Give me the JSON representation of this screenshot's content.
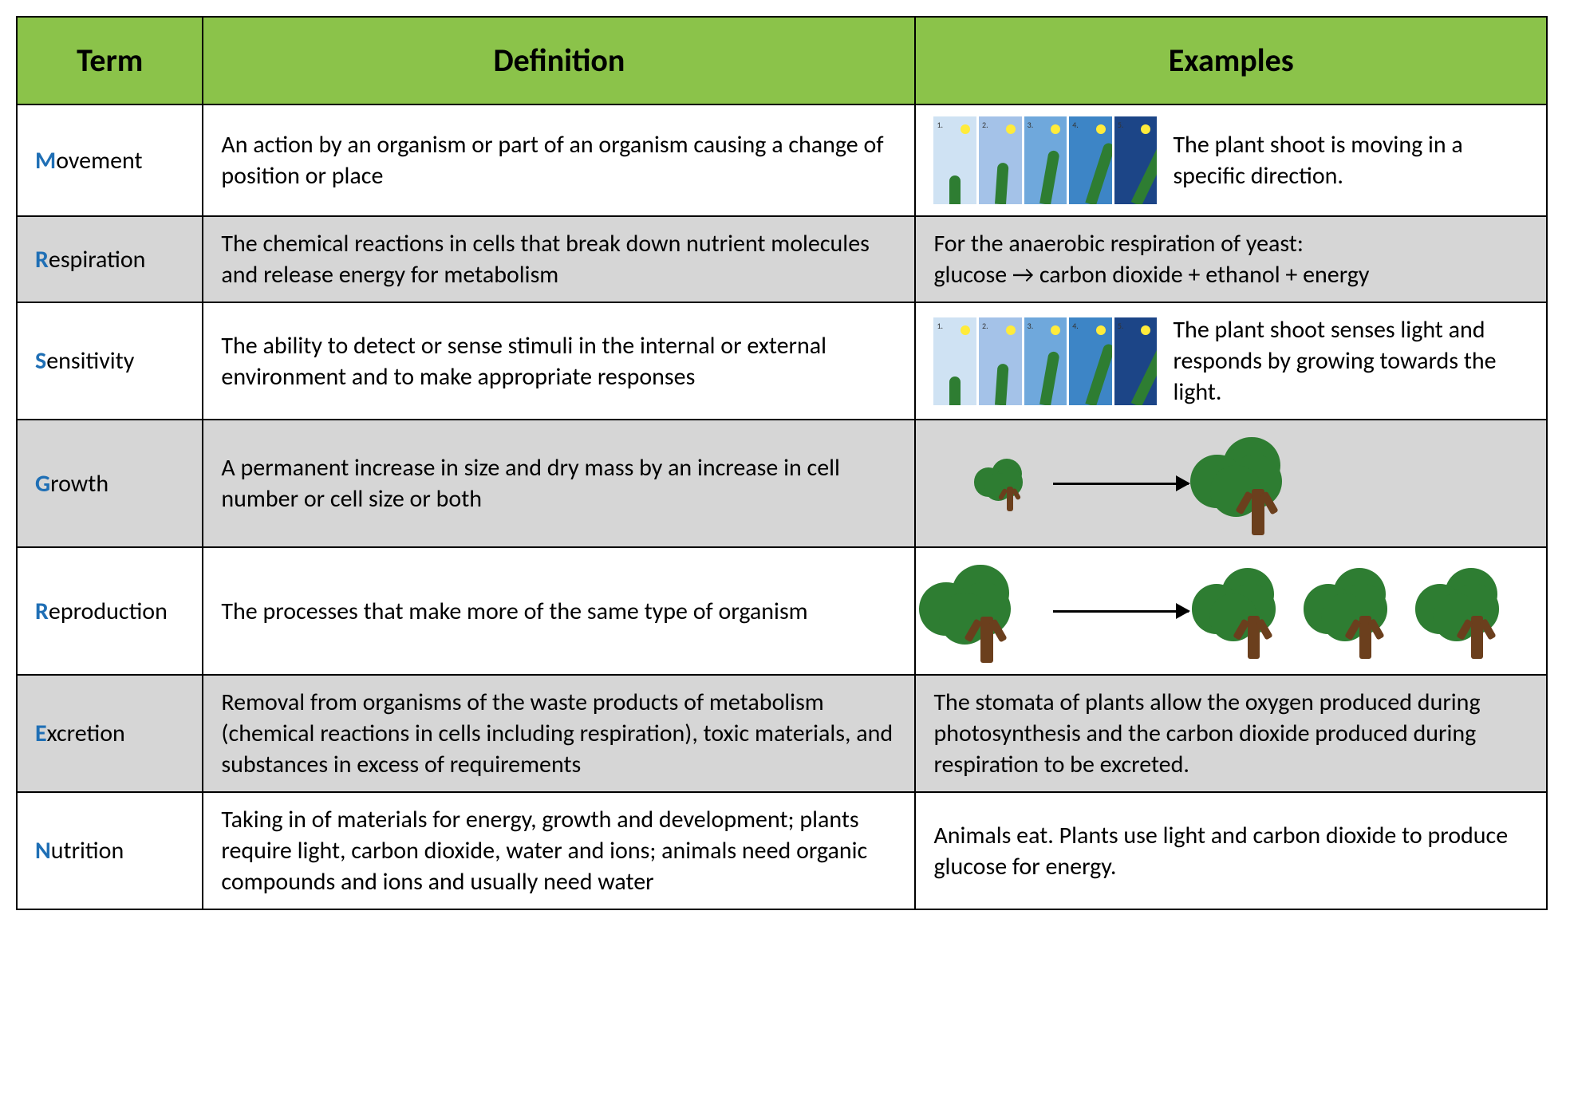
{
  "header": {
    "term": "Term",
    "definition": "Definition",
    "examples": "Examples",
    "header_bg": "#8bc34a",
    "header_fontsize": 40
  },
  "accent_color": "#1f6fb5",
  "alt_row_bg": "#d6d6d6",
  "border_color": "#000000",
  "body_fontsize": 30,
  "rows": [
    {
      "first": "M",
      "rest": "ovement",
      "definition": "An action by an organism or part of an organism causing a change of position or place",
      "example_text": "The plant shoot is moving in a specific direction.",
      "example_kind": "phototropism"
    },
    {
      "first": "R",
      "rest": "espiration",
      "definition": "The chemical reactions in cells that break down nutrient molecules and release energy for metabolism",
      "example_text": "For the anaerobic respiration of yeast:\nglucose → carbon dioxide + ethanol + energy",
      "example_kind": "text"
    },
    {
      "first": "S",
      "rest": "ensitivity",
      "definition": "The ability to detect or sense stimuli in the internal or external environment and to make appropriate responses",
      "example_text": "The plant shoot senses light and responds by growing towards the light.",
      "example_kind": "phototropism"
    },
    {
      "first": "G",
      "rest": "rowth",
      "definition": "A permanent increase in size and dry mass by an increase in cell number or cell size or both",
      "example_text": "",
      "example_kind": "growth"
    },
    {
      "first": "R",
      "rest": "eproduction",
      "definition": "The processes that make more of the same type of organism",
      "example_text": "",
      "example_kind": "reproduction"
    },
    {
      "first": "E",
      "rest": "xcretion",
      "definition": "Removal from organisms of the waste products of metabolism (chemical reactions in cells including respiration), toxic materials, and substances in excess of requirements",
      "example_text": "The stomata of plants allow the oxygen produced during photosynthesis and the carbon dioxide produced during respiration to be excreted.",
      "example_kind": "text"
    },
    {
      "first": "N",
      "rest": "utrition",
      "definition": "Taking in of materials for energy, growth and development; plants require light, carbon dioxide, water and ions; animals need organic compounds and ions and usually need water",
      "example_text": "Animals eat. Plants use light and carbon dioxide to produce glucose for energy.",
      "example_kind": "text"
    }
  ],
  "phototropism": {
    "panel_bgs": [
      "#cfe2f3",
      "#a4c2e8",
      "#6fa8dc",
      "#3d85c6",
      "#1c4587"
    ],
    "sun_color": "#ffeb3b",
    "cactus_color": "#2e7d32",
    "heights": [
      36,
      52,
      68,
      80,
      88
    ],
    "bend_deg": [
      0,
      4,
      10,
      18,
      26
    ]
  },
  "tree_style": {
    "crown_color": "#2e7d32",
    "trunk_color": "#6b3f1d"
  },
  "growth": {
    "small_size": 70,
    "big_size": 130,
    "arrow_len": 170
  },
  "reproduction": {
    "parent_size": 130,
    "child_size": 120,
    "arrow_len": 170,
    "child_count": 3
  }
}
